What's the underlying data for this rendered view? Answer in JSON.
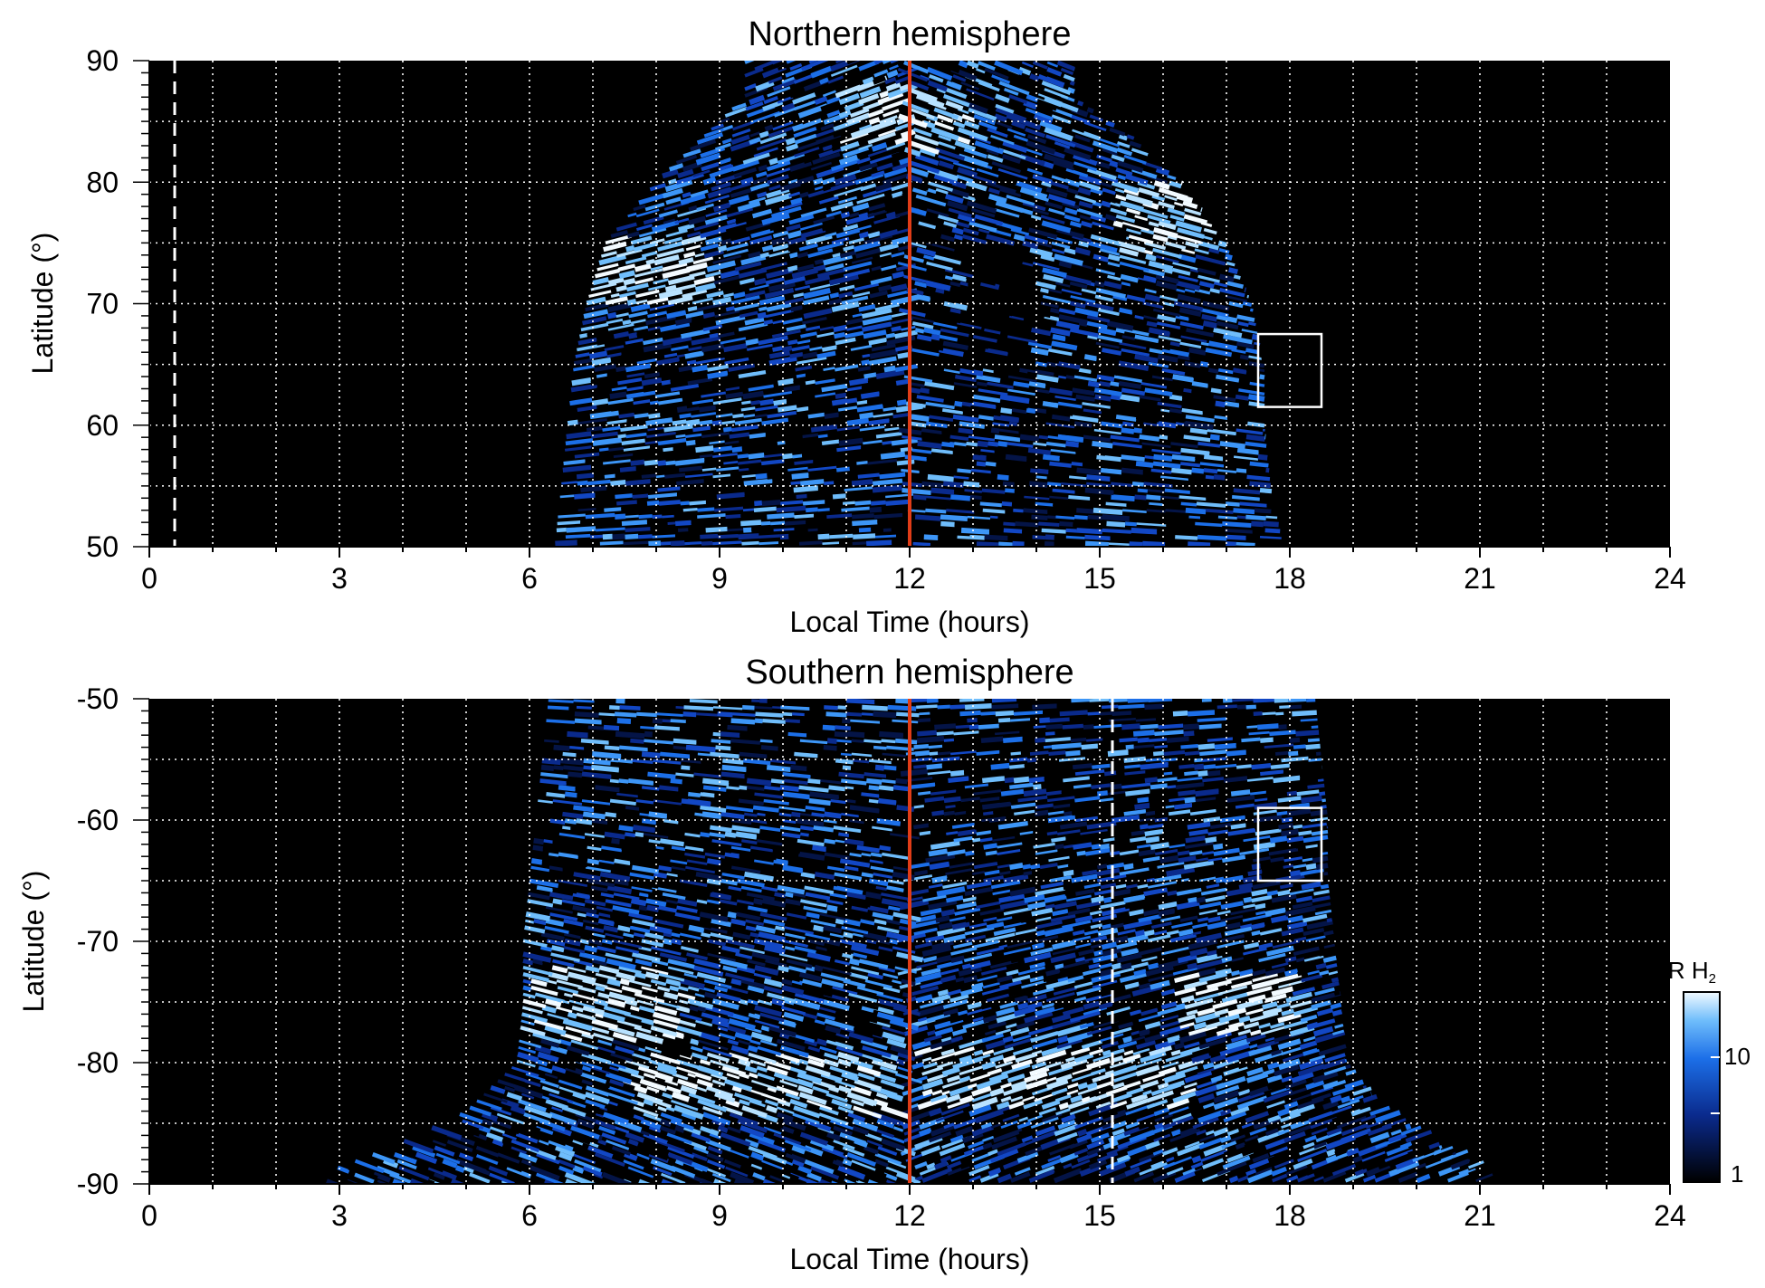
{
  "colors": {
    "background": "#000000",
    "auroral_blue": "#1a6fe6",
    "auroral_light": "#8fd2ff",
    "noon_line": "#e03c17",
    "grid": "#ffffff"
  },
  "chart_data": [
    {
      "type": "heatmap",
      "title": "Northern hemisphere",
      "xlabel": "Local Time (hours)",
      "ylabel": "Latitude (°)",
      "xlim": [
        0,
        24
      ],
      "ylim": [
        50,
        90
      ],
      "xticks": [
        "0",
        "3",
        "6",
        "9",
        "12",
        "15",
        "18",
        "21",
        "24"
      ],
      "yticks": [
        "50",
        "60",
        "70",
        "80",
        "90"
      ],
      "grid": true,
      "noon_line_lt": 12,
      "dashed_line_lt": 0.4,
      "box": {
        "lt": [
          17.5,
          18.5
        ],
        "lat": [
          61.5,
          67.5
        ]
      },
      "coverage": [
        {
          "lat": 50,
          "lt_start": 6.4,
          "lt_end": 17.9
        },
        {
          "lat": 55,
          "lt_start": 6.5,
          "lt_end": 17.7
        },
        {
          "lat": 60,
          "lt_start": 6.6,
          "lt_end": 17.6
        },
        {
          "lat": 65,
          "lt_start": 6.7,
          "lt_end": 17.6
        },
        {
          "lat": 70,
          "lt_start": 6.9,
          "lt_end": 17.4
        },
        {
          "lat": 75,
          "lt_start": 7.2,
          "lt_end": 17.0
        },
        {
          "lat": 80,
          "lt_start": 8.0,
          "lt_end": 16.3
        },
        {
          "lat": 84,
          "lt_start": 8.8,
          "lt_end": 15.5
        },
        {
          "lat": 87,
          "lt_start": 9.4,
          "lt_end": 14.6
        }
      ],
      "bright_regions": [
        {
          "lt": [
            7.0,
            8.8
          ],
          "lat": [
            70,
            75
          ]
        },
        {
          "lt": [
            15.2,
            16.8
          ],
          "lat": [
            74,
            80
          ]
        },
        {
          "lt": [
            11.0,
            13.0
          ],
          "lat": [
            83,
            88
          ]
        }
      ],
      "dark_regions": [
        {
          "lt": [
            12.8,
            14.0
          ],
          "lat": [
            65,
            75
          ]
        }
      ]
    },
    {
      "type": "heatmap",
      "title": "Southern hemisphere",
      "xlabel": "Local Time (hours)",
      "ylabel": "Latitude (°)",
      "xlim": [
        0,
        24
      ],
      "ylim": [
        -90,
        -50
      ],
      "xticks": [
        "0",
        "3",
        "6",
        "9",
        "12",
        "15",
        "18",
        "21",
        "24"
      ],
      "yticks": [
        "-50",
        "-60",
        "-70",
        "-80",
        "-90"
      ],
      "grid": true,
      "noon_line_lt": 12,
      "dashed_line_lt": 15.2,
      "box": {
        "lt": [
          17.5,
          18.5
        ],
        "lat": [
          -65,
          -59
        ]
      },
      "coverage": [
        {
          "lat": -50,
          "lt_start": 6.3,
          "lt_end": 18.4
        },
        {
          "lat": -55,
          "lt_start": 6.2,
          "lt_end": 18.5
        },
        {
          "lat": -60,
          "lt_start": 6.1,
          "lt_end": 18.6
        },
        {
          "lat": -65,
          "lt_start": 6.0,
          "lt_end": 18.6
        },
        {
          "lat": -70,
          "lt_start": 5.9,
          "lt_end": 18.7
        },
        {
          "lat": -75,
          "lt_start": 5.9,
          "lt_end": 18.8
        },
        {
          "lat": -80,
          "lt_start": 5.8,
          "lt_end": 18.9
        },
        {
          "lat": -84,
          "lt_start": 5.0,
          "lt_end": 19.5
        },
        {
          "lat": -87,
          "lt_start": 3.8,
          "lt_end": 20.4
        },
        {
          "lat": -89,
          "lt_start": 2.8,
          "lt_end": 21.2
        }
      ],
      "bright_regions": [
        {
          "lt": [
            6.0,
            8.5
          ],
          "lat": [
            -78,
            -72
          ]
        },
        {
          "lt": [
            7.5,
            11.8
          ],
          "lat": [
            -84,
            -79
          ]
        },
        {
          "lt": [
            12.2,
            16.5
          ],
          "lat": [
            -84,
            -79
          ]
        },
        {
          "lt": [
            16.3,
            18.2
          ],
          "lat": [
            -78,
            -73
          ]
        }
      ],
      "dark_regions": []
    }
  ],
  "colorbar": {
    "label": "kR H",
    "label_sub": "2",
    "ticks": [
      "1",
      "10"
    ],
    "scale": "log",
    "range": [
      1,
      30
    ]
  }
}
